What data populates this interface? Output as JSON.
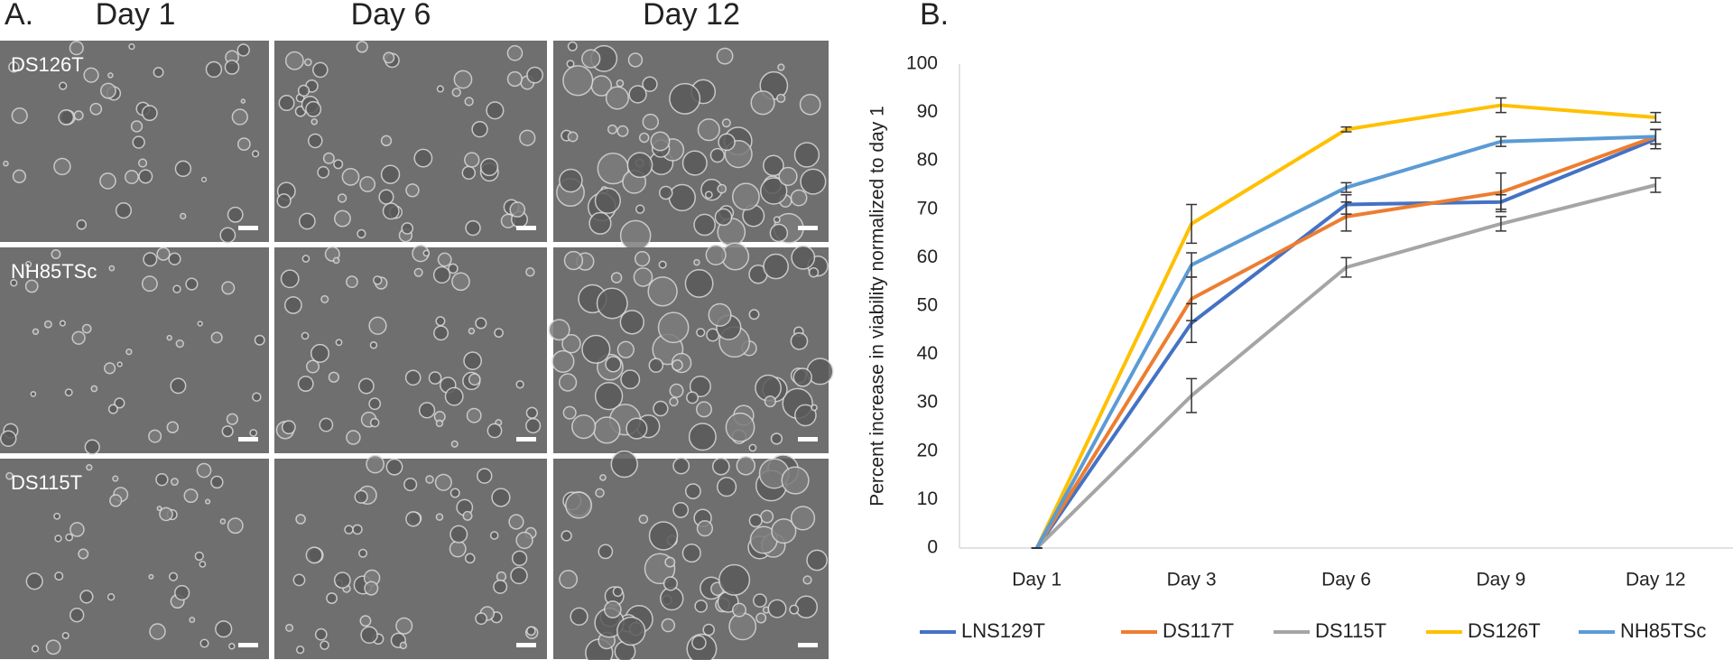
{
  "panel_a": {
    "label": "A.",
    "columns": [
      "Day 1",
      "Day 6",
      "Day 12"
    ],
    "rows": [
      "DS126T",
      "NH85TSc",
      "DS115T"
    ]
  },
  "chart_data": {
    "type": "line",
    "panel_label": "B.",
    "y_label": "Percent increase in viability normalized to day 1",
    "categories": [
      "Day 1",
      "Day 3",
      "Day 6",
      "Day 9",
      "Day 12"
    ],
    "series": [
      {
        "name": "LNS129T",
        "color": "#4472c4",
        "values": [
          0,
          46.5,
          71,
          71.5,
          84.5
        ],
        "errors": [
          0,
          4,
          2,
          1.5,
          2
        ]
      },
      {
        "name": "DS117T",
        "color": "#ed7d31",
        "values": [
          0,
          51.5,
          68.5,
          73.5,
          85
        ],
        "errors": [
          0,
          4.5,
          3,
          4,
          1.5
        ]
      },
      {
        "name": "DS115T",
        "color": "#a5a5a5",
        "values": [
          0,
          31.5,
          58,
          67,
          75
        ],
        "errors": [
          0,
          3.5,
          2,
          1.5,
          1.5
        ]
      },
      {
        "name": "DS126T",
        "color": "#ffc000",
        "values": [
          0,
          67,
          86.5,
          91.5,
          89
        ],
        "errors": [
          0,
          4,
          0.5,
          1.5,
          1
        ]
      },
      {
        "name": "NH85TSc",
        "color": "#5b9bd5",
        "values": [
          0,
          58.5,
          74.5,
          84,
          85
        ],
        "errors": [
          0,
          2.5,
          1,
          1,
          1.5
        ]
      }
    ],
    "ylim": [
      0,
      100
    ],
    "yticks": [
      0,
      10,
      20,
      30,
      40,
      50,
      60,
      70,
      80,
      90,
      100
    ],
    "grid": false,
    "legend": "bottom"
  }
}
